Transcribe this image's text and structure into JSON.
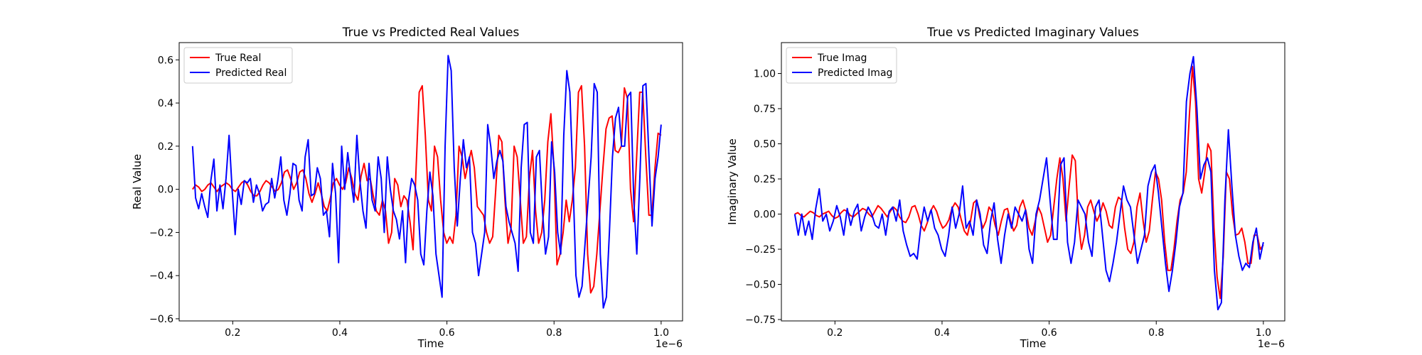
{
  "chart_data": [
    {
      "type": "line",
      "title": "True vs Predicted Real Values",
      "xlabel": "Time",
      "ylabel": "Real Value",
      "x_offset_text": "1e−6",
      "xlim": [
        0.1,
        1.04
      ],
      "ylim": [
        -0.61,
        0.68
      ],
      "x_range": [
        0.125,
        1.0
      ],
      "x_ticks": [
        "0.2",
        "0.4",
        "0.6",
        "0.8",
        "1.0"
      ],
      "x_tick_values": [
        0.2,
        0.4,
        0.6,
        0.8,
        1.0
      ],
      "y_ticks": [
        "−0.6",
        "−0.4",
        "−0.2",
        "0.0",
        "0.2",
        "0.4",
        "0.6"
      ],
      "y_tick_values": [
        -0.6,
        -0.4,
        -0.2,
        0.0,
        0.2,
        0.4,
        0.6
      ],
      "grid": false,
      "legend_position": "upper-left",
      "series": [
        {
          "name": "True Real",
          "color": "#ff0000",
          "values": [
            0.0,
            0.02,
            0.01,
            -0.01,
            0.0,
            0.02,
            0.03,
            0.01,
            -0.01,
            0.01,
            0.02,
            0.03,
            0.02,
            0.0,
            -0.01,
            0.01,
            0.03,
            0.04,
            0.02,
            -0.01,
            -0.03,
            -0.03,
            -0.01,
            0.02,
            0.04,
            0.03,
            0.01,
            -0.01,
            0.0,
            0.03,
            0.08,
            0.09,
            0.05,
            0.0,
            0.03,
            0.08,
            0.09,
            0.05,
            -0.02,
            -0.06,
            -0.02,
            0.03,
            -0.02,
            -0.08,
            -0.1,
            -0.04,
            0.03,
            0.05,
            0.02,
            0.0,
            0.03,
            0.1,
            0.05,
            -0.02,
            -0.05,
            0.06,
            0.12,
            0.04,
            0.05,
            -0.03,
            -0.1,
            -0.12,
            -0.05,
            -0.1,
            -0.25,
            -0.2,
            0.05,
            0.02,
            -0.08,
            -0.03,
            -0.05,
            -0.15,
            -0.28,
            0.1,
            0.45,
            0.48,
            0.25,
            -0.05,
            -0.1,
            0.2,
            0.15,
            -0.05,
            -0.2,
            -0.25,
            -0.22,
            -0.25,
            -0.12,
            0.2,
            0.15,
            0.05,
            0.12,
            0.18,
            0.1,
            -0.08,
            -0.1,
            -0.12,
            -0.2,
            -0.25,
            -0.22,
            0.0,
            0.25,
            0.22,
            -0.05,
            -0.25,
            -0.18,
            0.2,
            0.15,
            -0.05,
            -0.25,
            -0.22,
            0.05,
            0.18,
            -0.1,
            -0.25,
            -0.2,
            -0.05,
            0.22,
            0.35,
            0.1,
            -0.35,
            -0.3,
            -0.2,
            -0.05,
            -0.15,
            -0.05,
            0.1,
            0.45,
            0.48,
            0.2,
            -0.3,
            -0.48,
            -0.45,
            -0.3,
            -0.1,
            0.1,
            0.28,
            0.33,
            0.34,
            0.18,
            0.17,
            0.2,
            0.47,
            0.42,
            0.0,
            -0.15,
            0.15,
            0.45,
            0.45,
            0.15,
            -0.12,
            -0.12,
            0.1,
            0.26,
            0.25
          ]
        },
        {
          "name": "Predicted Real",
          "color": "#0000ff",
          "values": [
            0.2,
            -0.04,
            -0.09,
            -0.02,
            -0.08,
            -0.13,
            0.04,
            0.14,
            -0.1,
            0.02,
            -0.09,
            0.05,
            0.25,
            0.0,
            -0.21,
            0.0,
            -0.07,
            0.04,
            0.03,
            0.05,
            -0.06,
            0.02,
            -0.02,
            -0.1,
            -0.07,
            -0.06,
            0.05,
            -0.04,
            0.04,
            0.15,
            -0.05,
            -0.12,
            -0.02,
            0.12,
            0.11,
            -0.05,
            -0.1,
            0.15,
            0.23,
            -0.03,
            -0.02,
            0.1,
            0.05,
            -0.12,
            -0.1,
            -0.22,
            0.12,
            -0.02,
            -0.34,
            0.2,
            0.0,
            0.17,
            0.05,
            -0.06,
            0.25,
            0.04,
            -0.1,
            -0.18,
            0.12,
            -0.05,
            -0.1,
            0.15,
            0.05,
            -0.2,
            0.15,
            0.0,
            -0.1,
            -0.14,
            -0.23,
            -0.1,
            -0.34,
            -0.05,
            0.05,
            0.02,
            -0.05,
            -0.3,
            -0.35,
            -0.1,
            0.08,
            -0.03,
            -0.3,
            -0.4,
            -0.5,
            0.2,
            0.62,
            0.55,
            0.1,
            -0.17,
            0.05,
            0.23,
            0.1,
            0.15,
            -0.2,
            -0.25,
            -0.4,
            -0.3,
            -0.2,
            0.3,
            0.2,
            0.05,
            0.13,
            0.18,
            0.13,
            -0.08,
            -0.15,
            -0.2,
            -0.25,
            -0.38,
            0.1,
            0.3,
            0.31,
            -0.2,
            -0.25,
            0.15,
            0.18,
            -0.1,
            -0.3,
            -0.22,
            0.22,
            0.08,
            -0.2,
            -0.3,
            0.25,
            0.55,
            0.45,
            0.05,
            -0.4,
            -0.5,
            -0.45,
            -0.25,
            -0.05,
            0.15,
            0.49,
            0.45,
            -0.3,
            -0.55,
            -0.5,
            -0.2,
            0.15,
            0.33,
            0.38,
            0.2,
            0.2,
            0.43,
            0.45,
            -0.05,
            -0.3,
            0.05,
            0.48,
            0.49,
            0.15,
            -0.17,
            0.05,
            0.15,
            0.3
          ]
        }
      ]
    },
    {
      "type": "line",
      "title": "True vs Predicted Imaginary Values",
      "xlabel": "Time",
      "ylabel": "Imaginary Value",
      "x_offset_text": "1e−6",
      "xlim": [
        0.1,
        1.04
      ],
      "ylim": [
        -0.76,
        1.22
      ],
      "x_range": [
        0.125,
        1.0
      ],
      "x_ticks": [
        "0.2",
        "0.4",
        "0.6",
        "0.8",
        "1.0"
      ],
      "x_tick_values": [
        0.2,
        0.4,
        0.6,
        0.8,
        1.0
      ],
      "y_ticks": [
        "−0.75",
        "−0.50",
        "−0.25",
        "0.00",
        "0.25",
        "0.50",
        "0.75",
        "1.00"
      ],
      "y_tick_values": [
        -0.75,
        -0.5,
        -0.25,
        0.0,
        0.25,
        0.5,
        0.75,
        1.0
      ],
      "grid": false,
      "legend_position": "upper-left",
      "series": [
        {
          "name": "True Imag",
          "color": "#ff0000",
          "values": [
            0.0,
            0.01,
            -0.01,
            -0.02,
            0.0,
            0.02,
            0.01,
            -0.01,
            -0.02,
            0.0,
            0.01,
            0.02,
            -0.01,
            -0.03,
            -0.02,
            0.01,
            0.03,
            0.02,
            -0.01,
            -0.02,
            0.0,
            0.02,
            0.04,
            0.03,
            0.0,
            -0.02,
            0.02,
            0.06,
            0.04,
            0.01,
            -0.02,
            0.02,
            0.05,
            0.03,
            -0.02,
            -0.05,
            -0.06,
            -0.02,
            0.05,
            0.06,
            0.0,
            -0.08,
            -0.12,
            -0.06,
            0.02,
            0.06,
            0.02,
            -0.05,
            -0.1,
            -0.08,
            -0.04,
            0.04,
            0.08,
            0.05,
            -0.04,
            -0.12,
            -0.15,
            -0.05,
            0.08,
            0.1,
            -0.02,
            -0.1,
            -0.05,
            0.05,
            0.02,
            -0.08,
            -0.15,
            -0.05,
            0.03,
            0.04,
            -0.05,
            -0.12,
            -0.08,
            0.05,
            0.1,
            0.02,
            -0.1,
            -0.15,
            -0.05,
            0.05,
            0.0,
            -0.1,
            -0.2,
            -0.15,
            0.05,
            0.25,
            0.4,
            0.25,
            -0.05,
            0.2,
            0.42,
            0.38,
            -0.05,
            -0.25,
            -0.15,
            0.05,
            0.1,
            0.02,
            -0.05,
            0.0,
            0.08,
            0.02,
            -0.08,
            -0.1,
            0.05,
            0.12,
            0.1,
            -0.1,
            -0.25,
            -0.28,
            -0.2,
            0.05,
            0.15,
            -0.05,
            -0.2,
            -0.12,
            0.1,
            0.3,
            0.25,
            0.1,
            -0.2,
            -0.4,
            -0.4,
            -0.25,
            -0.05,
            0.1,
            0.15,
            0.3,
            0.7,
            1.05,
            0.8,
            0.25,
            0.15,
            0.3,
            0.5,
            0.45,
            -0.1,
            -0.45,
            -0.6,
            -0.3,
            0.3,
            0.25,
            0.0,
            -0.15,
            -0.14,
            -0.1,
            -0.2,
            -0.35,
            -0.35,
            -0.15,
            -0.15,
            -0.25,
            -0.22
          ]
        },
        {
          "name": "Predicted Imag",
          "color": "#0000ff",
          "values": [
            0.0,
            -0.15,
            0.0,
            -0.15,
            -0.05,
            -0.18,
            0.04,
            0.18,
            -0.05,
            0.0,
            -0.12,
            -0.05,
            0.06,
            -0.02,
            -0.15,
            0.04,
            -0.08,
            0.02,
            0.07,
            -0.12,
            -0.02,
            0.05,
            0.0,
            -0.08,
            -0.1,
            0.0,
            -0.15,
            0.02,
            0.05,
            -0.05,
            0.1,
            -0.12,
            -0.22,
            -0.3,
            -0.28,
            -0.32,
            -0.1,
            0.05,
            -0.05,
            0.03,
            -0.1,
            -0.15,
            -0.25,
            -0.3,
            -0.15,
            0.05,
            -0.1,
            0.0,
            0.2,
            -0.1,
            -0.05,
            -0.15,
            0.1,
            0.0,
            -0.22,
            -0.28,
            -0.05,
            0.08,
            -0.18,
            -0.35,
            -0.15,
            0.0,
            -0.1,
            0.05,
            0.0,
            -0.05,
            0.03,
            -0.25,
            -0.35,
            0.0,
            0.1,
            0.25,
            0.4,
            0.1,
            -0.18,
            -0.18,
            0.35,
            0.4,
            -0.2,
            -0.35,
            -0.2,
            0.1,
            0.05,
            0.0,
            -0.2,
            -0.3,
            0.05,
            0.1,
            -0.15,
            -0.4,
            -0.48,
            -0.35,
            -0.2,
            0.0,
            0.2,
            0.1,
            0.05,
            -0.15,
            -0.35,
            -0.25,
            -0.15,
            0.2,
            0.3,
            0.35,
            0.15,
            -0.1,
            -0.35,
            -0.55,
            -0.4,
            -0.2,
            0.05,
            0.15,
            0.8,
            1.0,
            1.12,
            0.75,
            0.25,
            0.35,
            0.4,
            0.3,
            -0.4,
            -0.68,
            -0.63,
            0.1,
            0.6,
            0.2,
            -0.15,
            -0.3,
            -0.4,
            -0.35,
            -0.38,
            -0.2,
            -0.1,
            -0.32,
            -0.2
          ]
        }
      ]
    }
  ]
}
